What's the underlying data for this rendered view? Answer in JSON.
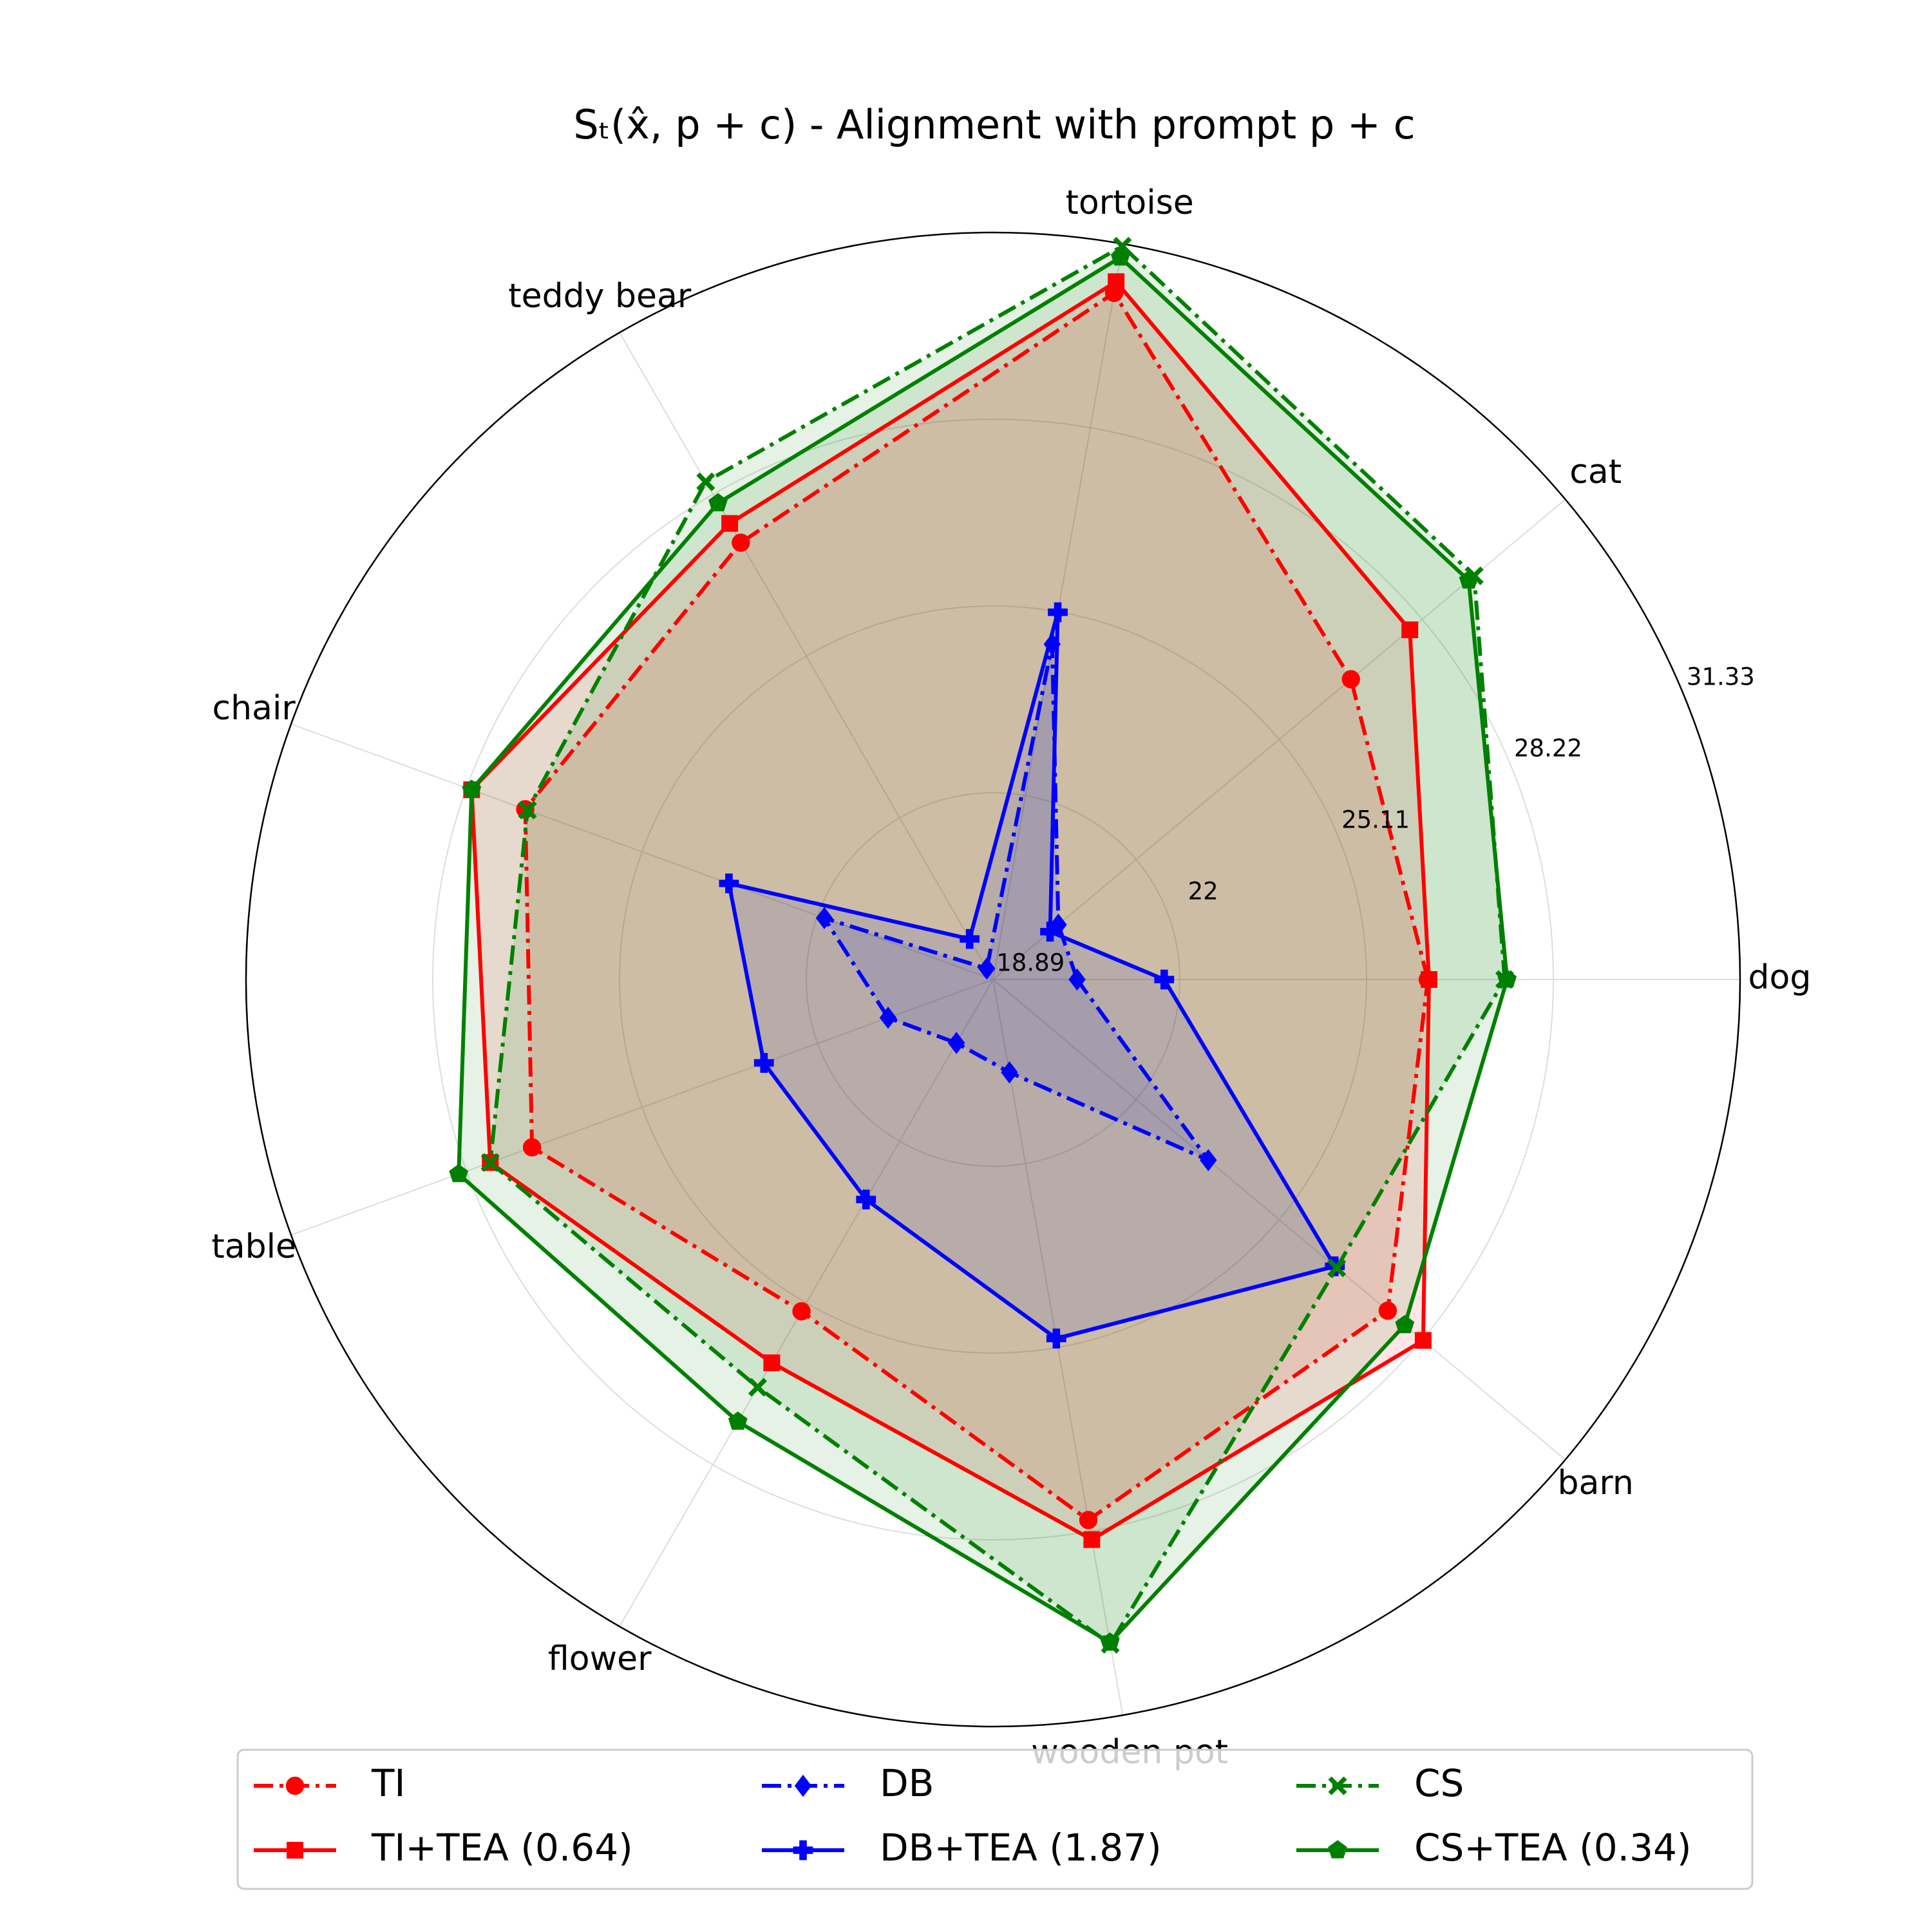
{
  "chart_data": {
    "type": "radar",
    "title": "Sₜ(x̂, p + c) - Alignment with prompt p + c",
    "categories": [
      "dog",
      "cat",
      "tortoise",
      "teddy bear",
      "chair",
      "table",
      "flower",
      "wooden pot",
      "barn"
    ],
    "ylim": [
      18.89,
      31.33
    ],
    "yticks": [
      18.89,
      22.0,
      25.11,
      28.22,
      31.33
    ],
    "grid": true,
    "legend": "lower center",
    "series": [
      {
        "name": "TI",
        "color": "#ff0000",
        "marker": "circle",
        "linestyle": "dashdot",
        "values": [
          26.13,
          26.67,
          30.5,
          27.29,
          27.18,
          27.06,
          25.27,
          28.03,
          27.47
        ]
      },
      {
        "name": "TI+TEA (0.64)",
        "color": "#ff0000",
        "marker": "square",
        "linestyle": "solid",
        "values": [
          26.15,
          27.95,
          30.69,
          27.66,
          28.13,
          27.8,
          26.26,
          28.36,
          28.24
        ]
      },
      {
        "name": "DB",
        "color": "#0000ff",
        "marker": "diamond",
        "linestyle": "dashdot",
        "values": [
          20.29,
          20.31,
          24.56,
          19.1,
          21.88,
          20.75,
          20.11,
          20.46,
          23.57
        ]
      },
      {
        "name": "DB+TEA (1.87)",
        "color": "#0000ff",
        "marker": "plus",
        "linestyle": "solid",
        "values": [
          21.74,
          20.13,
          25.1,
          19.67,
          23.57,
          22.95,
          23.12,
          24.96,
          26.32
        ]
      },
      {
        "name": "CS",
        "color": "#008000",
        "marker": "x",
        "linestyle": "dashdot",
        "values": [
          27.41,
          29.35,
          31.29,
          28.46,
          27.14,
          27.8,
          26.73,
          30.13,
          26.36
        ]
      },
      {
        "name": "CS+TEA (0.34)",
        "color": "#008000",
        "marker": "pentagon",
        "linestyle": "solid",
        "values": [
          27.45,
          29.23,
          31.1,
          28.05,
          28.13,
          28.36,
          27.39,
          30.1,
          27.84
        ]
      }
    ]
  }
}
